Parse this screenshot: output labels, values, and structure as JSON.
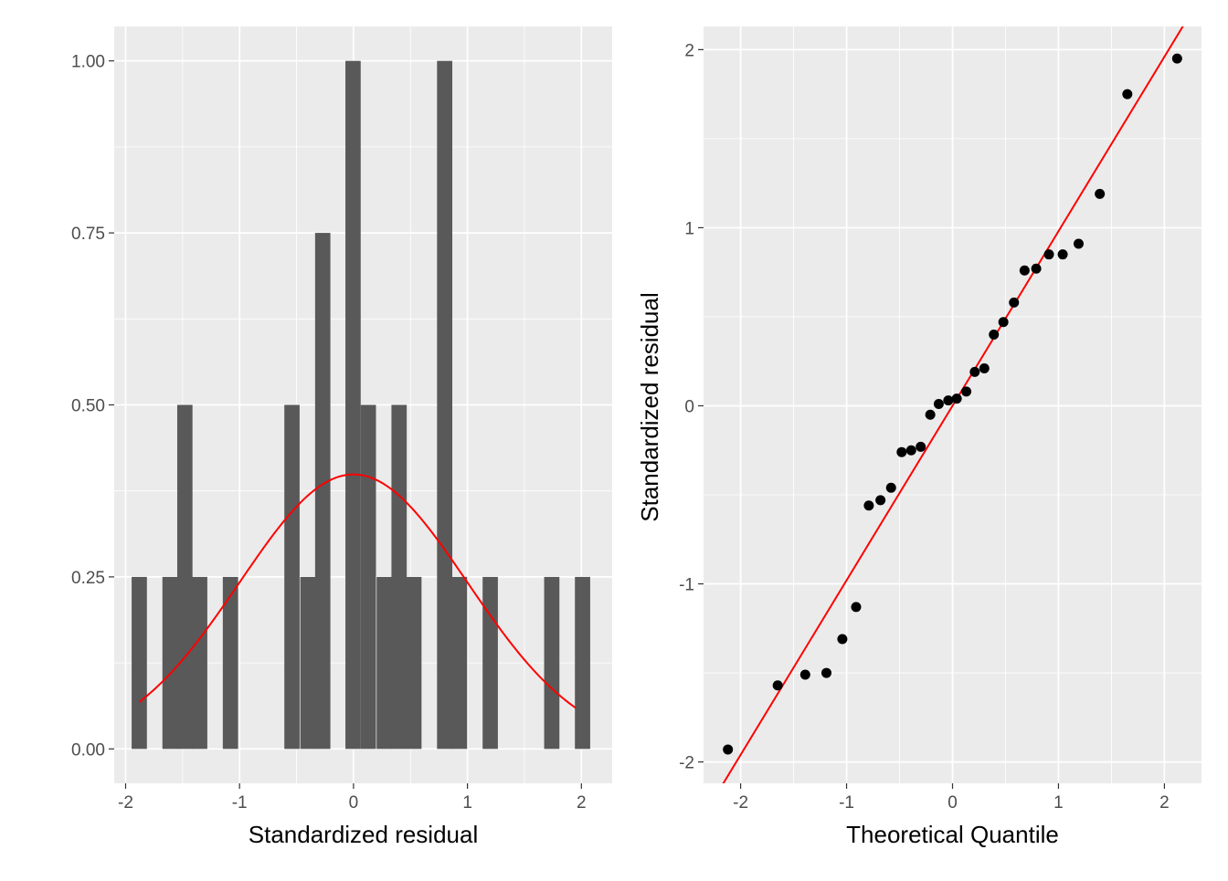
{
  "colors": {
    "panel_background": "#ebebeb",
    "grid_major": "#ffffff",
    "bar_fill": "#595959",
    "density_curve": "#ff0000",
    "reference_line": "#ff0000",
    "points": "#000000",
    "tick_text": "#4d4d4d"
  },
  "chart_data": [
    {
      "type": "bar",
      "subtype": "histogram with normal density overlay",
      "title": "",
      "xlabel": "Standardized residual",
      "ylabel": "",
      "xlim": [
        -2.1,
        2.27
      ],
      "ylim": [
        -0.05,
        1.05
      ],
      "x_ticks": [
        -2,
        -1,
        0,
        1,
        2
      ],
      "x_tick_labels": [
        "-2",
        "-1",
        "0",
        "1",
        "2"
      ],
      "y_ticks": [
        0,
        0.25,
        0.5,
        0.75,
        1.0
      ],
      "y_tick_labels": [
        "0.00",
        "0.25",
        "0.50",
        "0.75",
        "1.00"
      ],
      "bin_width": 0.134,
      "bins": [
        {
          "x": -1.88,
          "value": 0.25
        },
        {
          "x": -1.61,
          "value": 0.25
        },
        {
          "x": -1.48,
          "value": 0.5
        },
        {
          "x": -1.35,
          "value": 0.25
        },
        {
          "x": -1.08,
          "value": 0.25
        },
        {
          "x": -0.54,
          "value": 0.5
        },
        {
          "x": -0.4,
          "value": 0.25
        },
        {
          "x": -0.27,
          "value": 0.75
        },
        {
          "x": -0.004,
          "value": 1.0
        },
        {
          "x": 0.13,
          "value": 0.5
        },
        {
          "x": 0.27,
          "value": 0.25
        },
        {
          "x": 0.4,
          "value": 0.5
        },
        {
          "x": 0.53,
          "value": 0.25
        },
        {
          "x": 0.8,
          "value": 1.0
        },
        {
          "x": 0.93,
          "value": 0.25
        },
        {
          "x": 1.2,
          "value": 0.25
        },
        {
          "x": 1.74,
          "value": 0.25
        },
        {
          "x": 2.01,
          "value": 0.25
        }
      ],
      "density_curve": {
        "distribution": "normal",
        "mean": 0,
        "sd": 1,
        "x_range": [
          -1.88,
          1.95
        ]
      },
      "grid": true
    },
    {
      "type": "scatter",
      "subtype": "normal Q-Q plot with reference line",
      "title": "",
      "xlabel": "Theoretical Quantile",
      "ylabel": "Standardized residual",
      "xlim": [
        -2.35,
        2.35
      ],
      "ylim": [
        -2.12,
        2.13
      ],
      "x_ticks": [
        -2,
        -1,
        0,
        1,
        2
      ],
      "x_tick_labels": [
        "-2",
        "-1",
        "0",
        "1",
        "2"
      ],
      "y_ticks": [
        -2,
        -1,
        0,
        1,
        2
      ],
      "y_tick_labels": [
        "-2",
        "-1",
        "0",
        "1",
        "2"
      ],
      "points": [
        {
          "x": -2.12,
          "y": -1.93
        },
        {
          "x": -1.65,
          "y": -1.57
        },
        {
          "x": -1.39,
          "y": -1.51
        },
        {
          "x": -1.19,
          "y": -1.5
        },
        {
          "x": -1.04,
          "y": -1.31
        },
        {
          "x": -0.91,
          "y": -1.13
        },
        {
          "x": -0.79,
          "y": -0.56
        },
        {
          "x": -0.68,
          "y": -0.53
        },
        {
          "x": -0.58,
          "y": -0.46
        },
        {
          "x": -0.48,
          "y": -0.26
        },
        {
          "x": -0.39,
          "y": -0.25
        },
        {
          "x": -0.3,
          "y": -0.23
        },
        {
          "x": -0.21,
          "y": -0.05
        },
        {
          "x": -0.13,
          "y": 0.01
        },
        {
          "x": -0.04,
          "y": 0.03
        },
        {
          "x": 0.04,
          "y": 0.04
        },
        {
          "x": 0.13,
          "y": 0.08
        },
        {
          "x": 0.21,
          "y": 0.19
        },
        {
          "x": 0.3,
          "y": 0.21
        },
        {
          "x": 0.39,
          "y": 0.4
        },
        {
          "x": 0.48,
          "y": 0.47
        },
        {
          "x": 0.58,
          "y": 0.58
        },
        {
          "x": 0.68,
          "y": 0.76
        },
        {
          "x": 0.79,
          "y": 0.77
        },
        {
          "x": 0.91,
          "y": 0.85
        },
        {
          "x": 1.04,
          "y": 0.85
        },
        {
          "x": 1.19,
          "y": 0.91
        },
        {
          "x": 1.39,
          "y": 1.19
        },
        {
          "x": 1.65,
          "y": 1.75
        },
        {
          "x": 2.12,
          "y": 1.95
        }
      ],
      "reference_line": {
        "intercept": 0,
        "slope": 0.98
      },
      "grid": true
    }
  ]
}
